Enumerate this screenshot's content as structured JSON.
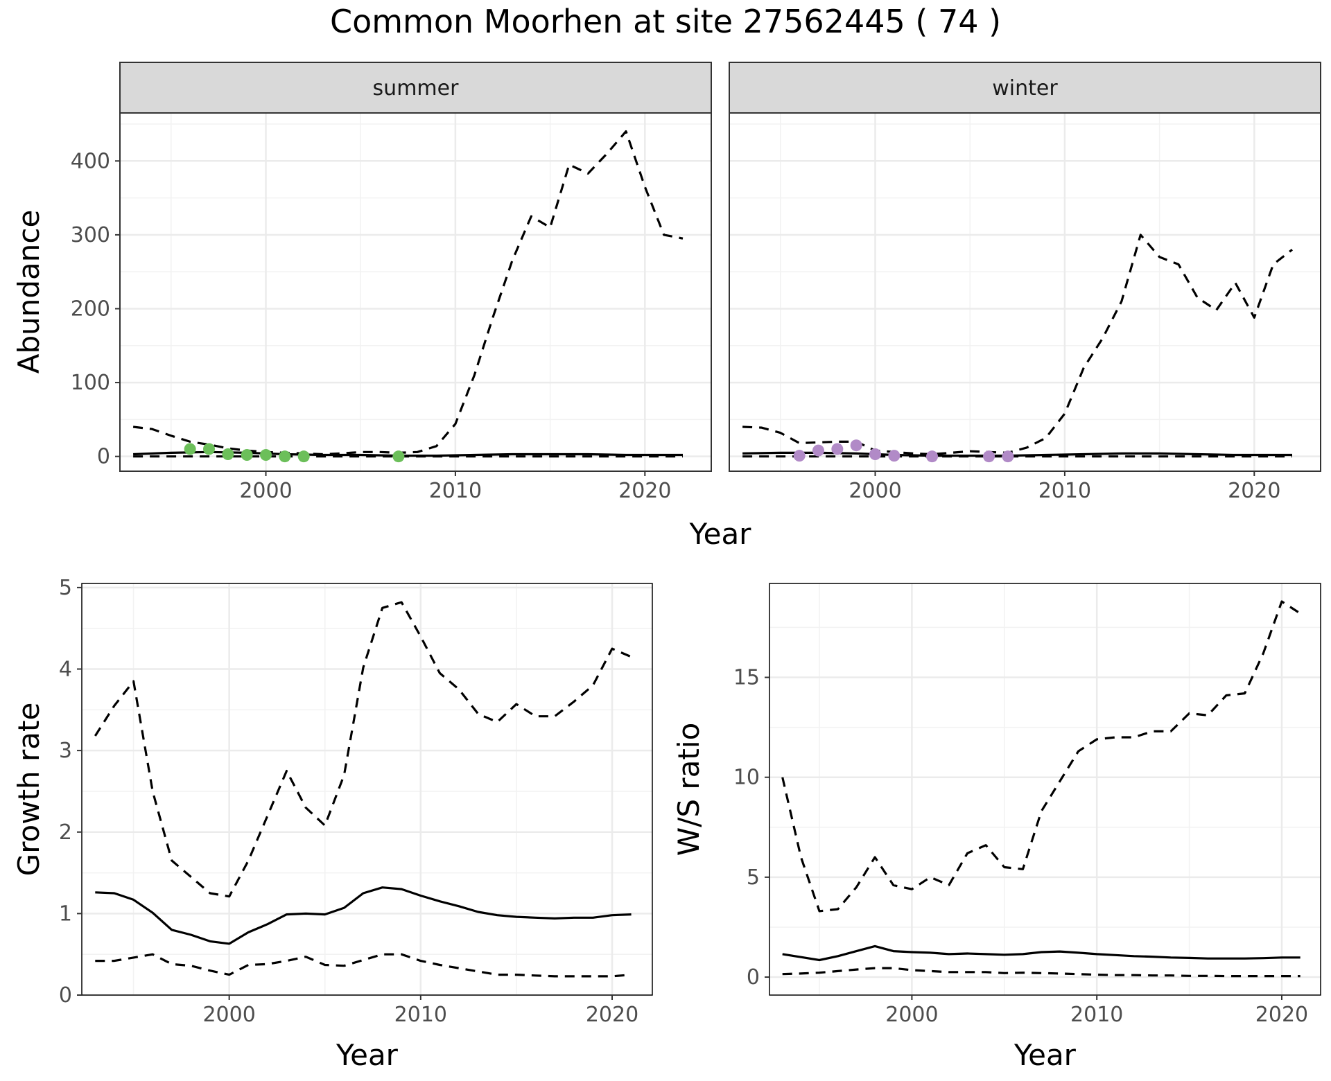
{
  "title": "Common Moorhen at site 27562445 ( 74 )",
  "chart_data": [
    {
      "id": "abundance",
      "type": "line",
      "facets": [
        "summer",
        "winter"
      ],
      "xlabel": "Year",
      "ylabel": "Abundance",
      "xlim": [
        1992.3,
        2023.5
      ],
      "ylim": [
        -20,
        465
      ],
      "x_ticks": [
        2000,
        2010,
        2020
      ],
      "y_ticks": [
        0,
        100,
        200,
        300,
        400
      ],
      "grid": true,
      "panels": [
        {
          "facet": "summer",
          "series": [
            {
              "style": "solid",
              "x": [
                1993,
                1995,
                1997,
                1999,
                2001,
                2003,
                2005,
                2007,
                2009,
                2011,
                2013,
                2015,
                2017,
                2019,
                2021,
                2022
              ],
              "y": [
                3,
                5,
                6,
                5,
                3,
                2,
                2,
                1,
                1,
                2,
                3,
                3,
                3,
                2,
                2,
                2
              ]
            },
            {
              "style": "dashed-upper",
              "x": [
                1993,
                1994,
                1995,
                1996,
                1997,
                1998,
                1999,
                2000,
                2001,
                2002,
                2003,
                2004,
                2005,
                2006,
                2007,
                2008,
                2009,
                2010,
                2011,
                2012,
                2013,
                2014,
                2015,
                2016,
                2017,
                2018,
                2019,
                2020,
                2021,
                2022
              ],
              "y": [
                40,
                37,
                28,
                20,
                16,
                11,
                8,
                6,
                5,
                4,
                3,
                4,
                6,
                6,
                5,
                6,
                14,
                44,
                110,
                190,
                265,
                325,
                310,
                395,
                383,
                410,
                440,
                365,
                300,
                295
              ]
            },
            {
              "style": "dashed-lower",
              "x": [
                1993,
                1995,
                2000,
                2005,
                2010,
                2015,
                2020,
                2022
              ],
              "y": [
                0,
                0,
                0,
                0,
                0,
                0,
                0,
                0
              ]
            }
          ],
          "points": {
            "color": "#6cbf5a",
            "x": [
              1996,
              1997,
              1998,
              1999,
              2000,
              2001,
              2002,
              2007
            ],
            "y": [
              10,
              10,
              3,
              2,
              2,
              0,
              0,
              0
            ]
          }
        },
        {
          "facet": "winter",
          "series": [
            {
              "style": "solid",
              "x": [
                1993,
                1995,
                1997,
                1999,
                2001,
                2003,
                2005,
                2007,
                2009,
                2011,
                2013,
                2015,
                2017,
                2019,
                2021,
                2022
              ],
              "y": [
                4,
                5,
                5,
                4,
                2,
                1,
                1,
                1,
                2,
                3,
                4,
                4,
                3,
                2,
                2,
                2
              ]
            },
            {
              "style": "dashed-upper",
              "x": [
                1993,
                1994,
                1995,
                1996,
                1997,
                1998,
                1999,
                2000,
                2001,
                2002,
                2003,
                2004,
                2005,
                2006,
                2007,
                2008,
                2009,
                2010,
                2011,
                2012,
                2013,
                2014,
                2015,
                2016,
                2017,
                2018,
                2019,
                2020,
                2021,
                2022
              ],
              "y": [
                40,
                39,
                32,
                18,
                19,
                20,
                20,
                8,
                6,
                4,
                3,
                5,
                7,
                6,
                5,
                12,
                25,
                58,
                120,
                160,
                210,
                300,
                270,
                260,
                215,
                198,
                235,
                188,
                260,
                280
              ]
            },
            {
              "style": "dashed-lower",
              "x": [
                1993,
                1995,
                2000,
                2005,
                2010,
                2015,
                2020,
                2022
              ],
              "y": [
                0,
                0,
                0,
                0,
                0,
                0,
                0,
                0
              ]
            }
          ],
          "points": {
            "color": "#b18ac7",
            "x": [
              1996,
              1997,
              1998,
              1999,
              2000,
              2001,
              2003,
              2006,
              2007
            ],
            "y": [
              1,
              8,
              10,
              15,
              3,
              1,
              0,
              0,
              0
            ]
          }
        }
      ]
    },
    {
      "id": "growth",
      "type": "line",
      "xlabel": "Year",
      "ylabel": "Growth rate",
      "xlim": [
        1992.3,
        2022.1
      ],
      "ylim": [
        0,
        5.05
      ],
      "x_ticks": [
        2000,
        2010,
        2020
      ],
      "y_ticks": [
        0,
        1,
        2,
        3,
        4,
        5
      ],
      "grid": true,
      "series": [
        {
          "style": "solid",
          "x": [
            1993,
            1994,
            1995,
            1996,
            1997,
            1998,
            1999,
            2000,
            2001,
            2002,
            2003,
            2004,
            2005,
            2006,
            2007,
            2008,
            2009,
            2010,
            2011,
            2012,
            2013,
            2014,
            2015,
            2016,
            2017,
            2018,
            2019,
            2020,
            2021
          ],
          "y": [
            1.26,
            1.25,
            1.17,
            1.01,
            0.8,
            0.74,
            0.66,
            0.63,
            0.77,
            0.87,
            0.99,
            1.0,
            0.99,
            1.07,
            1.25,
            1.32,
            1.3,
            1.22,
            1.15,
            1.09,
            1.02,
            0.98,
            0.96,
            0.95,
            0.94,
            0.95,
            0.95,
            0.98,
            0.99
          ]
        },
        {
          "style": "dashed-upper",
          "x": [
            1993,
            1994,
            1995,
            1996,
            1997,
            1998,
            1999,
            2000,
            2001,
            2002,
            2003,
            2004,
            2005,
            2006,
            2007,
            2008,
            2009,
            2010,
            2011,
            2012,
            2013,
            2014,
            2015,
            2016,
            2017,
            2018,
            2019,
            2020,
            2021
          ],
          "y": [
            3.18,
            3.55,
            3.85,
            2.5,
            1.65,
            1.45,
            1.25,
            1.21,
            1.65,
            2.2,
            2.75,
            2.3,
            2.08,
            2.7,
            4.02,
            4.75,
            4.82,
            4.4,
            3.95,
            3.75,
            3.45,
            3.35,
            3.57,
            3.42,
            3.42,
            3.6,
            3.8,
            4.25,
            4.15
          ]
        },
        {
          "style": "dashed-lower",
          "x": [
            1993,
            1994,
            1995,
            1996,
            1997,
            1998,
            1999,
            2000,
            2001,
            2002,
            2003,
            2004,
            2005,
            2006,
            2007,
            2008,
            2009,
            2010,
            2011,
            2012,
            2013,
            2014,
            2015,
            2016,
            2017,
            2018,
            2019,
            2020,
            2021
          ],
          "y": [
            0.42,
            0.42,
            0.46,
            0.5,
            0.38,
            0.36,
            0.3,
            0.25,
            0.37,
            0.38,
            0.42,
            0.47,
            0.37,
            0.36,
            0.43,
            0.5,
            0.5,
            0.42,
            0.37,
            0.33,
            0.29,
            0.25,
            0.25,
            0.24,
            0.23,
            0.23,
            0.23,
            0.23,
            0.25
          ]
        }
      ]
    },
    {
      "id": "ws-ratio",
      "type": "line",
      "xlabel": "Year",
      "ylabel": "W/S ratio",
      "xlim": [
        1992.3,
        2022.1
      ],
      "ylim": [
        -0.9,
        19.7
      ],
      "x_ticks": [
        2000,
        2010,
        2020
      ],
      "y_ticks": [
        0,
        5,
        10,
        15
      ],
      "grid": true,
      "series": [
        {
          "style": "solid",
          "x": [
            1993,
            1994,
            1995,
            1996,
            1997,
            1998,
            1999,
            2000,
            2001,
            2002,
            2003,
            2004,
            2005,
            2006,
            2007,
            2008,
            2009,
            2010,
            2011,
            2012,
            2013,
            2014,
            2015,
            2016,
            2017,
            2018,
            2019,
            2020,
            2021
          ],
          "y": [
            1.15,
            1.0,
            0.85,
            1.05,
            1.3,
            1.55,
            1.3,
            1.25,
            1.22,
            1.15,
            1.18,
            1.15,
            1.12,
            1.15,
            1.25,
            1.28,
            1.22,
            1.15,
            1.1,
            1.05,
            1.02,
            0.98,
            0.96,
            0.93,
            0.93,
            0.93,
            0.95,
            0.98,
            0.98
          ]
        },
        {
          "style": "dashed-upper",
          "x": [
            1993,
            1994,
            1995,
            1996,
            1997,
            1998,
            1999,
            2000,
            2001,
            2002,
            2003,
            2004,
            2005,
            2006,
            2007,
            2008,
            2009,
            2010,
            2011,
            2012,
            2013,
            2014,
            2015,
            2016,
            2017,
            2018,
            2019,
            2020,
            2021
          ],
          "y": [
            10.0,
            6.0,
            3.3,
            3.4,
            4.5,
            6.0,
            4.6,
            4.4,
            5.0,
            4.6,
            6.2,
            6.6,
            5.5,
            5.4,
            8.3,
            9.8,
            11.3,
            11.9,
            12.0,
            12.0,
            12.3,
            12.3,
            13.2,
            13.1,
            14.1,
            14.2,
            16.2,
            18.8,
            18.2
          ]
        },
        {
          "style": "dashed-lower",
          "x": [
            1993,
            1994,
            1995,
            1996,
            1997,
            1998,
            1999,
            2000,
            2001,
            2002,
            2003,
            2004,
            2005,
            2006,
            2007,
            2008,
            2009,
            2010,
            2011,
            2012,
            2013,
            2014,
            2015,
            2016,
            2017,
            2018,
            2019,
            2020,
            2021
          ],
          "y": [
            0.15,
            0.18,
            0.22,
            0.3,
            0.38,
            0.45,
            0.45,
            0.35,
            0.3,
            0.25,
            0.25,
            0.25,
            0.2,
            0.22,
            0.2,
            0.18,
            0.15,
            0.12,
            0.1,
            0.1,
            0.08,
            0.08,
            0.06,
            0.06,
            0.05,
            0.05,
            0.05,
            0.05,
            0.05
          ]
        }
      ]
    }
  ]
}
